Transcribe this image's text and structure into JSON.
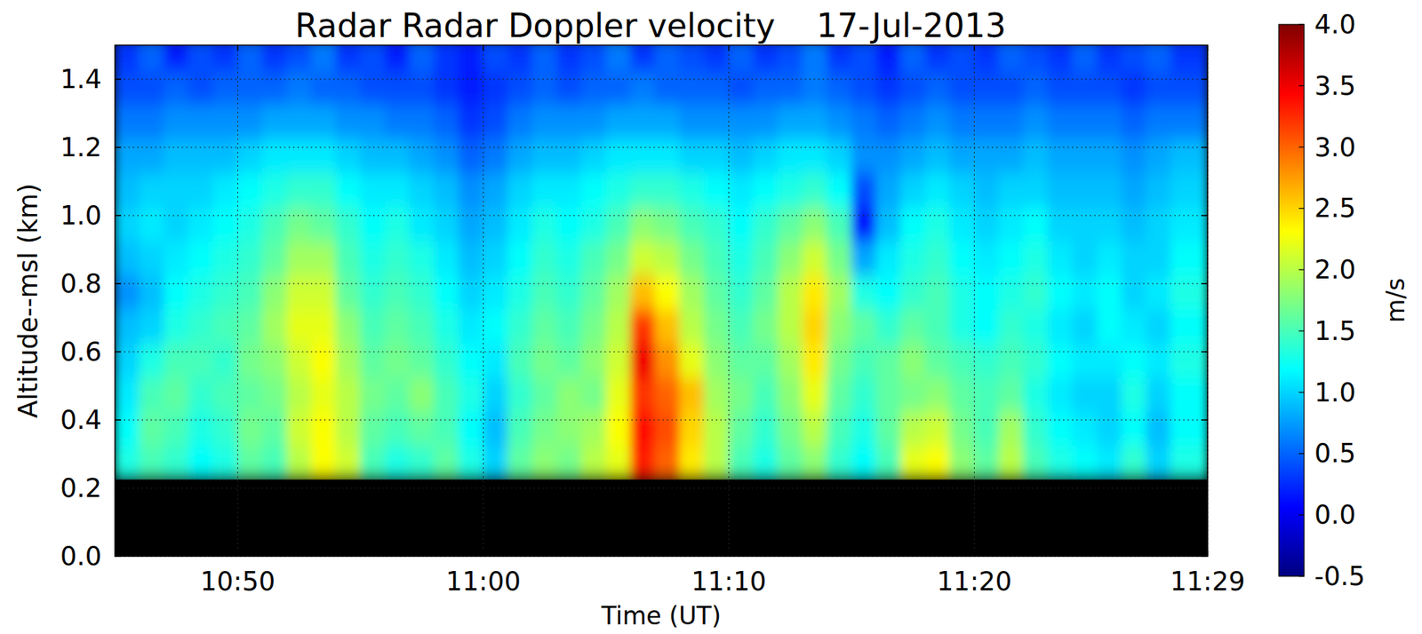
{
  "chart_data": {
    "type": "heatmap",
    "title": "Radar Radar Doppler velocity    17-Jul-2013",
    "x_label": "Time (UT)",
    "y_label": "Altitude--msl (km)",
    "x": [
      45.5,
      46.5,
      47.5,
      48.5,
      49.5,
      50.5,
      51.5,
      52.5,
      53.5,
      54.5,
      55.5,
      56.5,
      57.5,
      58.5,
      59.5,
      60.5,
      61.5,
      62.5,
      63.5,
      64.5,
      65.5,
      66.5,
      67.5,
      68.5,
      69.5,
      70.5,
      71.5,
      72.5,
      73.5,
      74.5,
      75.5,
      76.5,
      77.5,
      78.5,
      79.5,
      80.5,
      81.5,
      82.5,
      83.5,
      84.5,
      85.5,
      86.5,
      87.5,
      88.5
    ],
    "y": [
      0.275,
      0.375,
      0.475,
      0.575,
      0.675,
      0.775,
      0.875,
      0.975,
      1.075,
      1.175,
      1.275,
      1.375,
      1.475
    ],
    "cells": [
      [
        1.3,
        1.5,
        1.4,
        1.2,
        1.3,
        1.6,
        1.5,
        2.0,
        2.3,
        2.1,
        1.5,
        1.3,
        1.4,
        1.6,
        1.3,
        1.0,
        1.6,
        1.8,
        1.7,
        2.0,
        2.2,
        3.3,
        3.0,
        2.4,
        2.0,
        1.5,
        1.3,
        1.6,
        1.8,
        1.4,
        1.2,
        1.5,
        2.2,
        2.3,
        1.8,
        1.6,
        2.0,
        1.5,
        1.3,
        1.2,
        1.1,
        1.4,
        1.0,
        1.3
      ],
      [
        1.2,
        1.6,
        1.5,
        1.3,
        1.4,
        1.7,
        1.6,
        2.1,
        2.3,
        2.0,
        1.6,
        1.5,
        1.6,
        1.5,
        1.2,
        0.9,
        1.5,
        1.7,
        1.8,
        1.9,
        2.3,
        3.4,
        3.1,
        2.5,
        2.0,
        1.6,
        1.4,
        1.7,
        2.0,
        1.5,
        1.3,
        1.6,
        2.0,
        2.1,
        1.7,
        1.5,
        1.9,
        1.4,
        1.2,
        1.1,
        1.0,
        1.2,
        0.9,
        1.2
      ],
      [
        1.1,
        1.5,
        1.6,
        1.4,
        1.5,
        1.6,
        1.7,
        2.0,
        2.2,
        2.0,
        1.7,
        1.6,
        1.8,
        1.5,
        1.3,
        1.0,
        1.4,
        1.6,
        1.8,
        1.7,
        2.2,
        3.2,
        3.0,
        2.6,
        1.9,
        1.7,
        1.5,
        1.8,
        2.2,
        1.6,
        1.4,
        1.6,
        1.7,
        1.8,
        1.6,
        1.5,
        1.6,
        1.3,
        1.1,
        1.0,
        1.0,
        1.3,
        1.0,
        1.2
      ],
      [
        1.0,
        1.3,
        1.5,
        1.5,
        1.4,
        1.7,
        1.8,
        2.1,
        2.3,
        1.9,
        1.6,
        1.7,
        1.6,
        1.4,
        1.2,
        1.1,
        1.5,
        1.7,
        1.6,
        1.8,
        2.1,
        3.5,
        2.8,
        2.2,
        1.8,
        1.6,
        1.6,
        1.9,
        2.4,
        1.7,
        1.5,
        1.6,
        1.8,
        1.6,
        1.5,
        1.4,
        1.5,
        1.4,
        1.2,
        1.1,
        1.1,
        1.2,
        1.1,
        1.3
      ],
      [
        0.9,
        1.0,
        1.3,
        1.4,
        1.5,
        1.6,
        1.9,
        2.2,
        2.2,
        1.8,
        1.5,
        1.6,
        1.5,
        1.3,
        1.1,
        1.2,
        1.4,
        1.6,
        1.5,
        1.7,
        2.0,
        3.2,
        2.6,
        2.0,
        1.7,
        1.5,
        1.7,
        2.0,
        2.5,
        1.8,
        1.6,
        1.4,
        1.6,
        1.5,
        1.3,
        1.2,
        1.4,
        1.3,
        1.1,
        1.0,
        1.2,
        1.1,
        1.0,
        1.2
      ],
      [
        0.7,
        0.9,
        1.2,
        1.3,
        1.4,
        1.5,
        1.8,
        2.1,
        2.1,
        1.6,
        1.4,
        1.5,
        1.4,
        1.2,
        1.0,
        1.1,
        1.3,
        1.5,
        1.4,
        1.6,
        1.9,
        2.6,
        2.3,
        1.9,
        1.6,
        1.4,
        1.6,
        2.0,
        2.4,
        1.9,
        1.3,
        1.2,
        1.4,
        1.5,
        1.3,
        1.2,
        1.3,
        1.4,
        1.2,
        1.1,
        1.2,
        1.0,
        1.1,
        1.3
      ],
      [
        0.9,
        1.0,
        1.1,
        1.2,
        1.3,
        1.4,
        1.6,
        1.9,
        1.9,
        1.5,
        1.3,
        1.4,
        1.3,
        1.1,
        0.9,
        1.0,
        1.2,
        1.4,
        1.3,
        1.5,
        1.7,
        2.1,
        2.0,
        1.7,
        1.5,
        1.3,
        1.5,
        1.8,
        2.1,
        1.7,
        0.8,
        1.1,
        1.3,
        1.4,
        1.2,
        1.1,
        1.2,
        1.3,
        1.1,
        1.0,
        1.1,
        1.0,
        1.0,
        1.2
      ],
      [
        1.0,
        1.1,
        1.0,
        1.1,
        1.2,
        1.3,
        1.5,
        1.7,
        1.6,
        1.4,
        1.2,
        1.3,
        1.1,
        1.0,
        0.8,
        0.9,
        1.1,
        1.3,
        1.2,
        1.3,
        1.5,
        1.8,
        1.7,
        1.5,
        1.4,
        1.2,
        1.4,
        1.6,
        1.8,
        1.5,
        0.1,
        0.9,
        1.2,
        1.3,
        1.1,
        1.0,
        1.1,
        1.2,
        1.0,
        1.0,
        1.0,
        0.9,
        1.0,
        1.1
      ],
      [
        0.9,
        1.0,
        1.0,
        1.0,
        1.1,
        1.2,
        1.3,
        1.4,
        1.4,
        1.2,
        1.1,
        1.1,
        1.0,
        0.9,
        0.7,
        0.8,
        1.0,
        1.1,
        1.1,
        1.2,
        1.3,
        1.4,
        1.4,
        1.3,
        1.2,
        1.1,
        1.2,
        1.3,
        1.4,
        1.2,
        0.4,
        0.8,
        1.0,
        1.1,
        1.0,
        0.9,
        1.0,
        1.0,
        0.9,
        0.9,
        0.9,
        0.8,
        0.9,
        1.0
      ],
      [
        0.8,
        0.8,
        0.9,
        0.9,
        0.9,
        1.0,
        1.1,
        1.1,
        1.1,
        1.0,
        0.9,
        0.9,
        0.8,
        0.7,
        0.5,
        0.6,
        0.8,
        0.9,
        0.9,
        1.0,
        1.1,
        1.1,
        1.1,
        1.0,
        1.0,
        0.9,
        1.0,
        1.1,
        1.1,
        1.0,
        0.7,
        0.7,
        0.8,
        0.9,
        0.8,
        0.8,
        0.8,
        0.9,
        0.8,
        0.8,
        0.8,
        0.7,
        0.8,
        0.9
      ],
      [
        0.6,
        0.6,
        0.7,
        0.7,
        0.7,
        0.7,
        0.8,
        0.8,
        0.8,
        0.7,
        0.7,
        0.6,
        0.6,
        0.5,
        0.3,
        0.4,
        0.6,
        0.7,
        0.7,
        0.7,
        0.8,
        0.8,
        0.8,
        0.7,
        0.7,
        0.7,
        0.7,
        0.8,
        0.8,
        0.7,
        0.6,
        0.5,
        0.6,
        0.7,
        0.6,
        0.6,
        0.6,
        0.7,
        0.6,
        0.6,
        0.6,
        0.5,
        0.6,
        0.6
      ],
      [
        0.4,
        0.4,
        0.5,
        0.4,
        0.5,
        0.5,
        0.5,
        0.6,
        0.5,
        0.5,
        0.4,
        0.4,
        0.4,
        0.3,
        0.2,
        0.3,
        0.4,
        0.5,
        0.4,
        0.5,
        0.5,
        0.6,
        0.5,
        0.5,
        0.5,
        0.4,
        0.5,
        0.5,
        0.6,
        0.5,
        0.4,
        0.3,
        0.4,
        0.5,
        0.4,
        0.4,
        0.4,
        0.5,
        0.4,
        0.4,
        0.4,
        0.3,
        0.4,
        0.4
      ],
      [
        0.3,
        0.5,
        0.2,
        0.4,
        0.3,
        0.5,
        0.3,
        0.4,
        0.6,
        0.3,
        0.4,
        0.2,
        0.5,
        0.3,
        0.2,
        0.4,
        0.3,
        0.5,
        0.3,
        0.4,
        0.6,
        0.3,
        0.5,
        0.4,
        0.3,
        0.5,
        0.3,
        0.4,
        0.6,
        0.3,
        0.4,
        0.2,
        0.5,
        0.3,
        0.4,
        0.3,
        0.5,
        0.4,
        0.3,
        0.5,
        0.3,
        0.4,
        0.5,
        0.3
      ]
    ],
    "xlim": [
      45,
      89.5
    ],
    "xticks": [
      {
        "value": 50,
        "label": "10:50"
      },
      {
        "value": 60,
        "label": "11:00"
      },
      {
        "value": 70,
        "label": "11:10"
      },
      {
        "value": 80,
        "label": "11:20"
      },
      {
        "value": 89.5,
        "label": "11:29"
      }
    ],
    "ylim": [
      0,
      1.5
    ],
    "yticks": [
      {
        "value": 0,
        "label": "0.0"
      },
      0.2,
      0.4,
      0.6,
      0.8,
      {
        "value": 1,
        "label": "1.0"
      },
      1.2,
      1.4
    ],
    "colorbar": {
      "label": "m/s",
      "range": [
        -0.5,
        4
      ],
      "ticks": [
        -0.5,
        {
          "value": 0,
          "label": "0.0"
        },
        0.5,
        {
          "value": 1,
          "label": "1.0"
        },
        1.5,
        {
          "value": 2,
          "label": "2.0"
        },
        2.5,
        {
          "value": 3,
          "label": "3.0"
        },
        3.5,
        {
          "value": 4,
          "label": "4.0"
        }
      ]
    },
    "grid": true
  }
}
